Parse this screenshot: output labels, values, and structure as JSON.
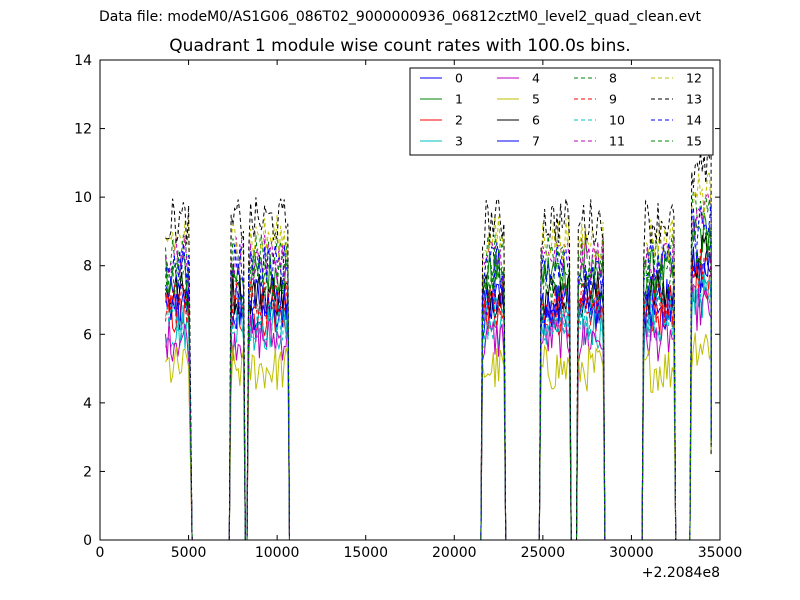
{
  "suptitle": "Data file: modeM0/AS1G06_086T02_9000000936_06812cztM0_level2_quad_clean.evt",
  "chart_data": {
    "type": "line",
    "title": "Quadrant 1 module wise count rates with 100.0s bins.",
    "xlabel": "",
    "ylabel": "",
    "x_offset_label": "+2.2084e8",
    "xlim": [
      0,
      35000
    ],
    "ylim": [
      0,
      14
    ],
    "xticks": [
      0,
      5000,
      10000,
      15000,
      20000,
      25000,
      30000,
      35000
    ],
    "yticks": [
      0,
      2,
      4,
      6,
      8,
      10,
      12,
      14
    ],
    "grid": false,
    "legend_position": "top-right",
    "legend_columns": 4,
    "bin_seconds": 100,
    "segments": [
      {
        "start": 3700,
        "end": 5000,
        "drop_to": 5200
      },
      {
        "start": 7400,
        "end": 8100,
        "drop_to": 8200
      },
      {
        "start": 8400,
        "end": 10600,
        "drop_to": 10700
      },
      {
        "start": 21600,
        "end": 22800,
        "drop_to": 22900
      },
      {
        "start": 24900,
        "end": 26500,
        "drop_to": 26600
      },
      {
        "start": 27000,
        "end": 28400,
        "drop_to": 28500
      },
      {
        "start": 30700,
        "end": 32400,
        "drop_to": 32500
      },
      {
        "start": 33400,
        "end": 34500,
        "drop_to": 34500
      }
    ],
    "series": [
      {
        "name": "0",
        "color": "#0000ff",
        "dashed": false,
        "level": 7.0
      },
      {
        "name": "1",
        "color": "#008000",
        "dashed": false,
        "level": 7.8
      },
      {
        "name": "2",
        "color": "#ff0000",
        "dashed": false,
        "level": 6.6
      },
      {
        "name": "3",
        "color": "#00bfbf",
        "dashed": false,
        "level": 6.2
      },
      {
        "name": "4",
        "color": "#bf00bf",
        "dashed": false,
        "level": 5.9
      },
      {
        "name": "5",
        "color": "#bfbf00",
        "dashed": false,
        "level": 5.0
      },
      {
        "name": "6",
        "color": "#000000",
        "dashed": false,
        "level": 7.2
      },
      {
        "name": "7",
        "color": "#0000ff",
        "dashed": false,
        "level": 6.8
      },
      {
        "name": "8",
        "color": "#008000",
        "dashed": true,
        "level": 8.3
      },
      {
        "name": "9",
        "color": "#ff0000",
        "dashed": true,
        "level": 6.9
      },
      {
        "name": "10",
        "color": "#00bfbf",
        "dashed": true,
        "level": 6.5
      },
      {
        "name": "11",
        "color": "#bf00bf",
        "dashed": true,
        "level": 8.2
      },
      {
        "name": "12",
        "color": "#bfbf00",
        "dashed": true,
        "level": 8.8
      },
      {
        "name": "13",
        "color": "#000000",
        "dashed": true,
        "level": 9.3
      },
      {
        "name": "14",
        "color": "#0000ff",
        "dashed": true,
        "level": 8.0
      },
      {
        "name": "15",
        "color": "#008000",
        "dashed": true,
        "level": 7.5
      }
    ]
  }
}
